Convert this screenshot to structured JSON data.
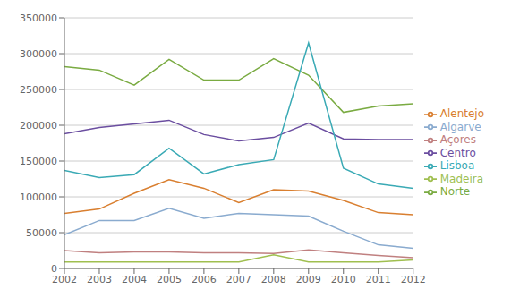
{
  "chart_data": {
    "type": "line",
    "x": [
      2002,
      2003,
      2004,
      2005,
      2006,
      2007,
      2008,
      2009,
      2010,
      2011,
      2012
    ],
    "series": [
      {
        "name": "Norte",
        "color": "#7aab42",
        "values": [
          282000,
          277000,
          256000,
          292000,
          263000,
          263000,
          293000,
          270000,
          218000,
          227000,
          230000
        ]
      },
      {
        "name": "Centro",
        "color": "#6b4ea0",
        "values": [
          188000,
          197000,
          202000,
          207000,
          187000,
          178000,
          183000,
          203000,
          181000,
          180000,
          180000
        ]
      },
      {
        "name": "Lisboa",
        "color": "#3aaab5",
        "values": [
          137000,
          127000,
          131000,
          168000,
          132000,
          145000,
          152000,
          315000,
          140000,
          118000,
          112000
        ]
      },
      {
        "name": "Alentejo",
        "color": "#d97f30",
        "values": [
          77000,
          83000,
          105000,
          124000,
          112000,
          92000,
          110000,
          108000,
          95000,
          78000,
          75000
        ]
      },
      {
        "name": "Algarve",
        "color": "#8aabcf",
        "values": [
          47000,
          67000,
          67000,
          84000,
          70000,
          77000,
          75000,
          73000,
          52000,
          33000,
          28000
        ]
      },
      {
        "name": "Açores",
        "color": "#c08080",
        "values": [
          25000,
          22000,
          23000,
          23000,
          22000,
          22000,
          21000,
          26000,
          22000,
          18000,
          15000
        ]
      },
      {
        "name": "Madeira",
        "color": "#a0bf50",
        "values": [
          9000,
          9000,
          9000,
          9000,
          9000,
          9000,
          19000,
          9000,
          9000,
          9000,
          12000
        ]
      }
    ],
    "xlim": [
      2002,
      2012
    ],
    "xticks": [
      2002,
      2003,
      2004,
      2005,
      2006,
      2007,
      2008,
      2009,
      2010,
      2011,
      2012
    ],
    "ylim": [
      0,
      350000
    ],
    "yticks": [
      0,
      50000,
      100000,
      150000,
      200000,
      250000,
      300000,
      350000
    ],
    "grid": "y",
    "legend": "right"
  }
}
